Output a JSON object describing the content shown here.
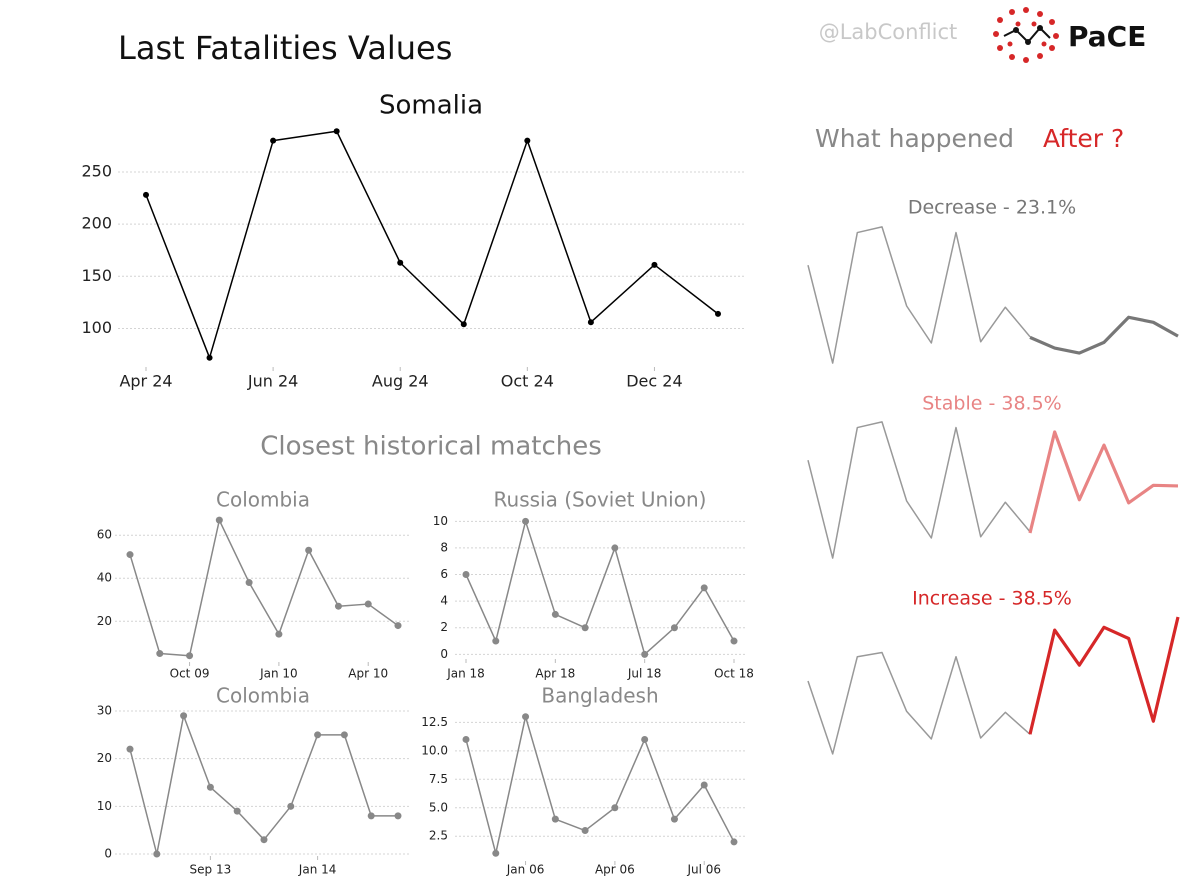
{
  "header": {
    "title": "Last Fatalities Values",
    "handle": "@LabConflict",
    "logo": "PaCE",
    "section_title": "Closest historical matches",
    "after_prefix": "What happened",
    "after_highlight": "After ?"
  },
  "chart_data": [
    {
      "type": "line",
      "title": "Somalia",
      "color": "#000000",
      "grid": true,
      "categories": [
        "Apr 24",
        null,
        "Jun 24",
        null,
        "Aug 24",
        null,
        "Oct 24",
        null,
        "Dec 24",
        null
      ],
      "values": [
        228,
        72,
        280,
        289,
        163,
        104,
        280,
        106,
        161,
        114
      ],
      "ylim": [
        65,
        295
      ],
      "yticks": [
        100,
        150,
        200,
        250
      ]
    },
    {
      "type": "line",
      "title": "Colombia",
      "color": "#888888",
      "grid": true,
      "categories": [
        null,
        null,
        "Oct 09",
        null,
        null,
        "Jan 10",
        null,
        null,
        "Apr 10",
        null
      ],
      "values": [
        51,
        5,
        4,
        67,
        38,
        14,
        53,
        27,
        28,
        18
      ],
      "ylim": [
        2,
        68
      ],
      "yticks": [
        20,
        40,
        60
      ]
    },
    {
      "type": "line",
      "title": "Russia (Soviet Union)",
      "color": "#888888",
      "grid": true,
      "categories": [
        "Jan 18",
        null,
        null,
        "Apr 18",
        null,
        null,
        "Jul 18",
        null,
        null,
        "Oct 18"
      ],
      "values": [
        6,
        1,
        10,
        3,
        2,
        8,
        0,
        2,
        5,
        1
      ],
      "ylim": [
        -0.2,
        10.1
      ],
      "yticks": [
        0,
        2,
        4,
        6,
        8,
        10
      ]
    },
    {
      "type": "line",
      "title": "Colombia",
      "color": "#888888",
      "grid": true,
      "categories": [
        null,
        null,
        null,
        "Sep 13",
        null,
        null,
        null,
        "Jan 14",
        null,
        null,
        null
      ],
      "values": [
        22,
        0,
        29,
        14,
        9,
        3,
        10,
        25,
        25,
        8,
        8
      ],
      "ylim": [
        0,
        30
      ],
      "yticks": [
        0,
        10,
        20,
        30
      ]
    },
    {
      "type": "line",
      "title": "Bangladesh",
      "color": "#888888",
      "grid": true,
      "categories": [
        null,
        null,
        "Jan 06",
        null,
        null,
        "Apr 06",
        null,
        null,
        "Jul 06",
        null
      ],
      "values": [
        11,
        1,
        13,
        4,
        3,
        5,
        11,
        4,
        7,
        2
      ],
      "ylim": [
        0.5,
        13.5
      ],
      "yticks": [
        2.5,
        {
          "value": 5,
          "label": "5.0"
        },
        7.5,
        {
          "value": 10,
          "label": "10.0"
        },
        12.5
      ]
    },
    {
      "type": "forecast",
      "title": "Decrease - 23.1%",
      "ylim": [
        61,
        300
      ],
      "series": [
        {
          "color": "#999999",
          "values": [
            228,
            72,
            280,
            289,
            163,
            104,
            280,
            106,
            161,
            114,
            null,
            null,
            null,
            null,
            null,
            null
          ]
        },
        {
          "color": "#777777",
          "values": [
            null,
            null,
            null,
            null,
            null,
            null,
            null,
            null,
            null,
            113,
            96,
            88,
            105,
            145,
            137,
            115
          ]
        }
      ]
    },
    {
      "type": "forecast",
      "title": "Stable - 38.5%",
      "ylim": [
        61,
        300
      ],
      "series": [
        {
          "color": "#999999",
          "values": [
            228,
            72,
            280,
            289,
            163,
            104,
            280,
            106,
            161,
            114,
            null,
            null,
            null,
            null,
            null,
            null
          ]
        },
        {
          "color": "#e88484",
          "values": [
            null,
            null,
            null,
            null,
            null,
            null,
            null,
            null,
            null,
            112,
            273,
            165,
            252,
            160,
            188,
            187
          ]
        }
      ]
    },
    {
      "type": "forecast",
      "title": "Increase - 38.5%",
      "ylim": [
        59,
        380
      ],
      "series": [
        {
          "color": "#999999",
          "values": [
            228,
            72,
            280,
            289,
            163,
            104,
            280,
            106,
            161,
            114,
            null,
            null,
            null,
            null,
            null,
            null
          ]
        },
        {
          "color": "#d62728",
          "values": [
            null,
            null,
            null,
            null,
            null,
            null,
            null,
            null,
            null,
            114,
            337,
            262,
            343,
            319,
            142,
            365
          ]
        }
      ]
    }
  ]
}
